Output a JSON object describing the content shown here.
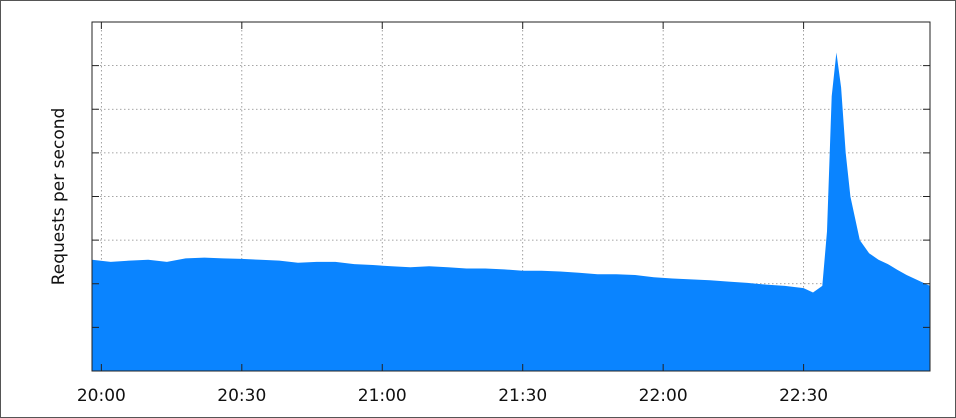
{
  "chart_data": {
    "type": "area",
    "title": "",
    "xlabel": "",
    "ylabel": "Requests per second",
    "x_ticks": [
      "20:00",
      "20:30",
      "21:00",
      "21:30",
      "22:00",
      "22:30"
    ],
    "x_range": [
      "19:58",
      "22:57"
    ],
    "y_range": [
      0,
      8
    ],
    "y_ticks_labeled": false,
    "grid": true,
    "series": [
      {
        "color": "#0a84ff",
        "x": [
          "19:58",
          "20:02",
          "20:06",
          "20:10",
          "20:14",
          "20:18",
          "20:22",
          "20:26",
          "20:30",
          "20:34",
          "20:38",
          "20:42",
          "20:46",
          "20:50",
          "20:54",
          "20:58",
          "21:02",
          "21:06",
          "21:10",
          "21:14",
          "21:18",
          "21:22",
          "21:26",
          "21:30",
          "21:34",
          "21:38",
          "21:42",
          "21:46",
          "21:50",
          "21:54",
          "21:58",
          "22:02",
          "22:06",
          "22:10",
          "22:14",
          "22:18",
          "22:22",
          "22:26",
          "22:30",
          "22:32",
          "22:34",
          "22:35",
          "22:36",
          "22:37",
          "22:38",
          "22:39",
          "22:40",
          "22:42",
          "22:44",
          "22:46",
          "22:48",
          "22:50",
          "22:52",
          "22:54",
          "22:57"
        ],
        "y": [
          2.55,
          2.5,
          2.53,
          2.55,
          2.5,
          2.58,
          2.6,
          2.58,
          2.57,
          2.55,
          2.53,
          2.48,
          2.5,
          2.5,
          2.45,
          2.43,
          2.4,
          2.38,
          2.4,
          2.38,
          2.35,
          2.35,
          2.33,
          2.3,
          2.3,
          2.28,
          2.25,
          2.22,
          2.22,
          2.2,
          2.15,
          2.12,
          2.1,
          2.08,
          2.05,
          2.02,
          1.98,
          1.95,
          1.9,
          1.8,
          1.95,
          3.2,
          6.3,
          7.3,
          6.5,
          5.0,
          4.0,
          3.0,
          2.7,
          2.55,
          2.45,
          2.32,
          2.2,
          2.1,
          1.95
        ]
      }
    ]
  }
}
